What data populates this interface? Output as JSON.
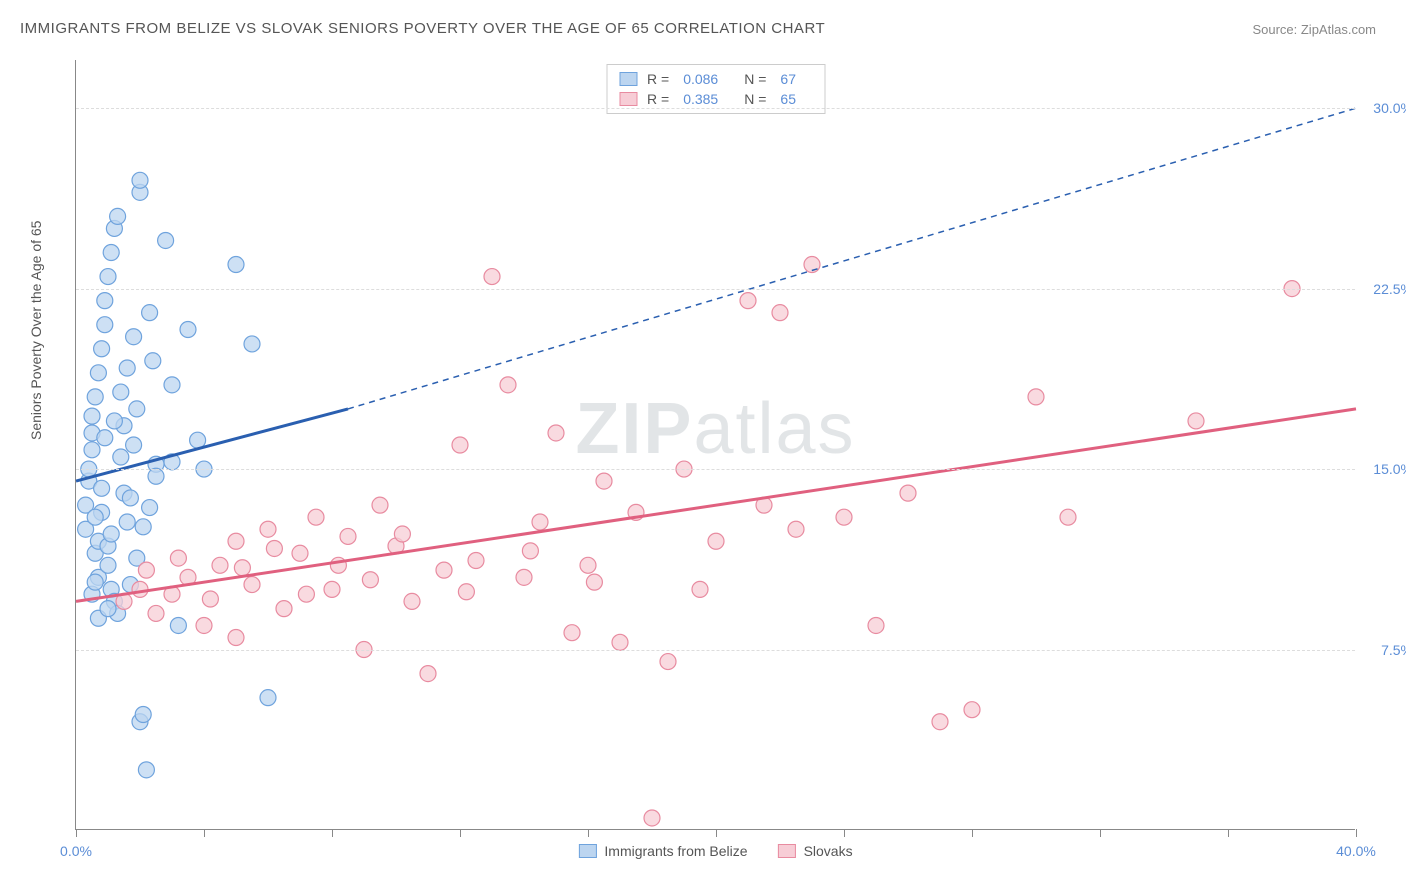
{
  "title": "IMMIGRANTS FROM BELIZE VS SLOVAK SENIORS POVERTY OVER THE AGE OF 65 CORRELATION CHART",
  "source": "Source: ZipAtlas.com",
  "ylabel": "Seniors Poverty Over the Age of 65",
  "watermark_a": "ZIP",
  "watermark_b": "atlas",
  "chart": {
    "type": "scatter-with-trend",
    "xlim": [
      0,
      40
    ],
    "ylim": [
      0,
      32
    ],
    "xticks": [
      0,
      4,
      8,
      12,
      16,
      20,
      24,
      28,
      32,
      36,
      40
    ],
    "xtick_labels": {
      "0": "0.0%",
      "40": "40.0%"
    },
    "yticks": [
      7.5,
      15.0,
      22.5,
      30.0
    ],
    "ytick_labels": [
      "7.5%",
      "15.0%",
      "22.5%",
      "30.0%"
    ],
    "background_color": "#ffffff",
    "grid_color": "#dddddd",
    "axis_color": "#888888"
  },
  "series": [
    {
      "name": "Immigrants from Belize",
      "color_fill": "#bcd5f0",
      "color_stroke": "#6fa3dd",
      "trend_color": "#2a5fb0",
      "r_label": "R =",
      "r_value": "0.086",
      "n_label": "N =",
      "n_value": "67",
      "trend_solid": {
        "x1": 0,
        "y1": 14.5,
        "x2": 8.5,
        "y2": 17.5
      },
      "trend_dashed": {
        "x1": 8.5,
        "y1": 17.5,
        "x2": 40,
        "y2": 30.0
      },
      "marker_radius": 8,
      "points": [
        [
          0.3,
          12.5
        ],
        [
          0.3,
          13.5
        ],
        [
          0.4,
          14.5
        ],
        [
          0.4,
          15.0
        ],
        [
          0.5,
          15.8
        ],
        [
          0.5,
          16.5
        ],
        [
          0.5,
          17.2
        ],
        [
          0.6,
          18.0
        ],
        [
          0.6,
          11.5
        ],
        [
          0.7,
          12.0
        ],
        [
          0.7,
          10.5
        ],
        [
          0.7,
          19.0
        ],
        [
          0.8,
          20.0
        ],
        [
          0.8,
          13.2
        ],
        [
          0.9,
          21.0
        ],
        [
          0.9,
          22.0
        ],
        [
          1.0,
          23.0
        ],
        [
          1.0,
          11.0
        ],
        [
          1.1,
          10.0
        ],
        [
          1.1,
          24.0
        ],
        [
          1.2,
          25.0
        ],
        [
          1.2,
          9.5
        ],
        [
          1.3,
          9.0
        ],
        [
          1.3,
          25.5
        ],
        [
          1.4,
          15.5
        ],
        [
          1.5,
          16.8
        ],
        [
          1.5,
          14.0
        ],
        [
          1.6,
          12.8
        ],
        [
          1.7,
          13.8
        ],
        [
          1.8,
          20.5
        ],
        [
          1.8,
          16.0
        ],
        [
          1.9,
          17.5
        ],
        [
          2.0,
          26.5
        ],
        [
          2.0,
          27.0
        ],
        [
          2.0,
          4.5
        ],
        [
          2.1,
          4.8
        ],
        [
          2.2,
          2.5
        ],
        [
          2.3,
          21.5
        ],
        [
          2.4,
          19.5
        ],
        [
          2.5,
          15.2
        ],
        [
          2.8,
          24.5
        ],
        [
          3.0,
          18.5
        ],
        [
          3.0,
          15.3
        ],
        [
          3.2,
          8.5
        ],
        [
          3.5,
          20.8
        ],
        [
          3.8,
          16.2
        ],
        [
          4.0,
          15.0
        ],
        [
          5.0,
          23.5
        ],
        [
          5.5,
          20.2
        ],
        [
          6.0,
          5.5
        ],
        [
          1.0,
          11.8
        ],
        [
          1.1,
          12.3
        ],
        [
          0.6,
          13.0
        ],
        [
          0.8,
          14.2
        ],
        [
          0.9,
          16.3
        ],
        [
          1.2,
          17.0
        ],
        [
          1.4,
          18.2
        ],
        [
          1.6,
          19.2
        ],
        [
          1.7,
          10.2
        ],
        [
          1.9,
          11.3
        ],
        [
          2.1,
          12.6
        ],
        [
          2.3,
          13.4
        ],
        [
          2.5,
          14.7
        ],
        [
          0.5,
          9.8
        ],
        [
          0.6,
          10.3
        ],
        [
          0.7,
          8.8
        ],
        [
          1.0,
          9.2
        ]
      ]
    },
    {
      "name": "Slovaks",
      "color_fill": "#f7cdd6",
      "color_stroke": "#e88ba0",
      "trend_color": "#e0607f",
      "r_label": "R =",
      "r_value": "0.385",
      "n_label": "N =",
      "n_value": "65",
      "trend_solid": {
        "x1": 0,
        "y1": 9.5,
        "x2": 40,
        "y2": 17.5
      },
      "trend_dashed": null,
      "marker_radius": 8,
      "points": [
        [
          1.5,
          9.5
        ],
        [
          2.0,
          10.0
        ],
        [
          2.5,
          9.0
        ],
        [
          3.0,
          9.8
        ],
        [
          3.5,
          10.5
        ],
        [
          4.0,
          8.5
        ],
        [
          4.5,
          11.0
        ],
        [
          5.0,
          12.0
        ],
        [
          5.0,
          8.0
        ],
        [
          5.5,
          10.2
        ],
        [
          6.0,
          12.5
        ],
        [
          6.5,
          9.2
        ],
        [
          7.0,
          11.5
        ],
        [
          7.5,
          13.0
        ],
        [
          8.0,
          10.0
        ],
        [
          8.5,
          12.2
        ],
        [
          9.0,
          7.5
        ],
        [
          9.5,
          13.5
        ],
        [
          10.0,
          11.8
        ],
        [
          10.5,
          9.5
        ],
        [
          11.0,
          6.5
        ],
        [
          11.5,
          10.8
        ],
        [
          12.0,
          16.0
        ],
        [
          12.5,
          11.2
        ],
        [
          13.0,
          23.0
        ],
        [
          13.5,
          18.5
        ],
        [
          14.0,
          10.5
        ],
        [
          14.5,
          12.8
        ],
        [
          15.0,
          16.5
        ],
        [
          15.5,
          8.2
        ],
        [
          16.0,
          11.0
        ],
        [
          16.5,
          14.5
        ],
        [
          17.0,
          7.8
        ],
        [
          17.5,
          13.2
        ],
        [
          18.0,
          0.5
        ],
        [
          18.5,
          7.0
        ],
        [
          19.0,
          15.0
        ],
        [
          19.5,
          10.0
        ],
        [
          20.0,
          12.0
        ],
        [
          21.0,
          22.0
        ],
        [
          21.5,
          13.5
        ],
        [
          22.0,
          21.5
        ],
        [
          22.5,
          12.5
        ],
        [
          23.0,
          23.5
        ],
        [
          24.0,
          13.0
        ],
        [
          25.0,
          8.5
        ],
        [
          26.0,
          14.0
        ],
        [
          27.0,
          4.5
        ],
        [
          28.0,
          5.0
        ],
        [
          30.0,
          18.0
        ],
        [
          31.0,
          13.0
        ],
        [
          35.0,
          17.0
        ],
        [
          38.0,
          22.5
        ],
        [
          2.2,
          10.8
        ],
        [
          3.2,
          11.3
        ],
        [
          4.2,
          9.6
        ],
        [
          5.2,
          10.9
        ],
        [
          6.2,
          11.7
        ],
        [
          7.2,
          9.8
        ],
        [
          8.2,
          11.0
        ],
        [
          9.2,
          10.4
        ],
        [
          10.2,
          12.3
        ],
        [
          12.2,
          9.9
        ],
        [
          14.2,
          11.6
        ],
        [
          16.2,
          10.3
        ]
      ]
    }
  ],
  "legend_bottom": [
    {
      "label": "Immigrants from Belize",
      "fill": "#bcd5f0",
      "stroke": "#6fa3dd"
    },
    {
      "label": "Slovaks",
      "fill": "#f7cdd6",
      "stroke": "#e88ba0"
    }
  ]
}
